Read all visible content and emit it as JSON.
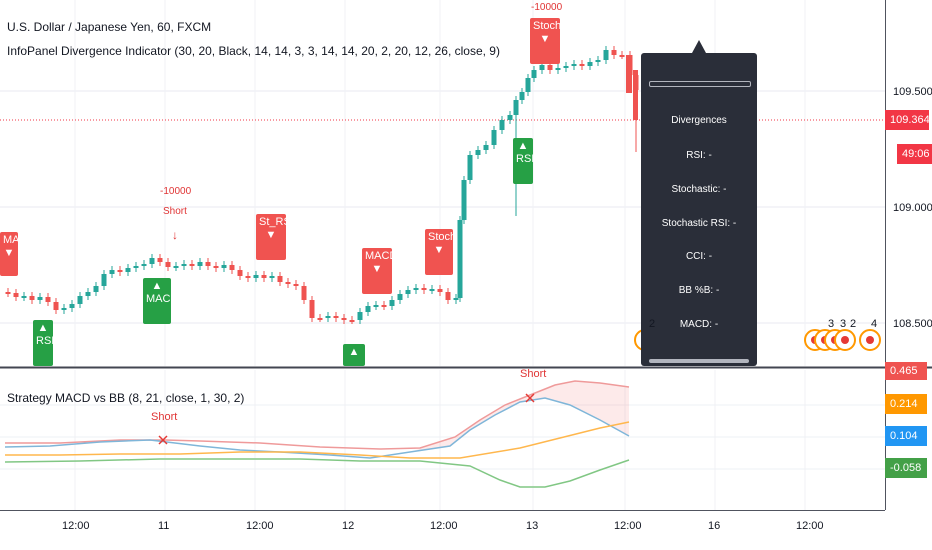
{
  "main_pane": {
    "symbol_title": "U.S. Dollar / Japanese Yen, 60, FXCM",
    "indicator_title": "InfoPanel Divergence Indicator (30, 20, Black, 14, 14, 3, 3, 14, 14, 20, 2, 20, 12, 26, close, 9)",
    "price_labels": [
      "109.500",
      "109.000",
      "108.500"
    ],
    "current_price": "109.364",
    "countdown": "49:06",
    "right_marker": "4"
  },
  "info_panel": {
    "title": "Divergences",
    "rows": [
      "RSI: -",
      "Stochastic: -",
      "Stochastic RSI: -",
      "CCI: -",
      "BB %B: -",
      "MACD: -"
    ]
  },
  "signals": [
    {
      "label": "MACD",
      "color": "red"
    },
    {
      "label": "RSI",
      "color": "green"
    },
    {
      "label": "MACD",
      "color": "green"
    },
    {
      "label": "St_RSI",
      "color": "red"
    },
    {
      "label": "MACD",
      "color": "red"
    },
    {
      "label": "Stoch",
      "color": "red"
    },
    {
      "label": "RSI",
      "color": "green"
    },
    {
      "label": "Stoch",
      "color": "red"
    }
  ],
  "trade_labels": {
    "short1_qty": "-10000",
    "short1_label": "Short",
    "short2_qty": "-10000",
    "short2_label": "Stoch"
  },
  "event_badges": [
    "2",
    "3",
    "3",
    "2"
  ],
  "sub_pane": {
    "title": "Strategy MACD vs BB (8, 21, close, 1, 30, 2)",
    "short_label_1": "Short",
    "short_label_2": "Short",
    "value_tags": [
      {
        "value": "0.465",
        "color": "#ef5350"
      },
      {
        "value": "0.214",
        "color": "#ff9800"
      },
      {
        "value": "0.104",
        "color": "#2196f3"
      },
      {
        "value": "-0.058",
        "color": "#43a047"
      }
    ]
  },
  "time_axis": [
    "12:00",
    "11",
    "12:00",
    "12",
    "12:00",
    "13",
    "12:00",
    "16",
    "12:00"
  ],
  "colors": {
    "up": "#26a69a",
    "down": "#ef5350",
    "price_line": "#f23645",
    "panel_bg": "#2a2e39"
  }
}
